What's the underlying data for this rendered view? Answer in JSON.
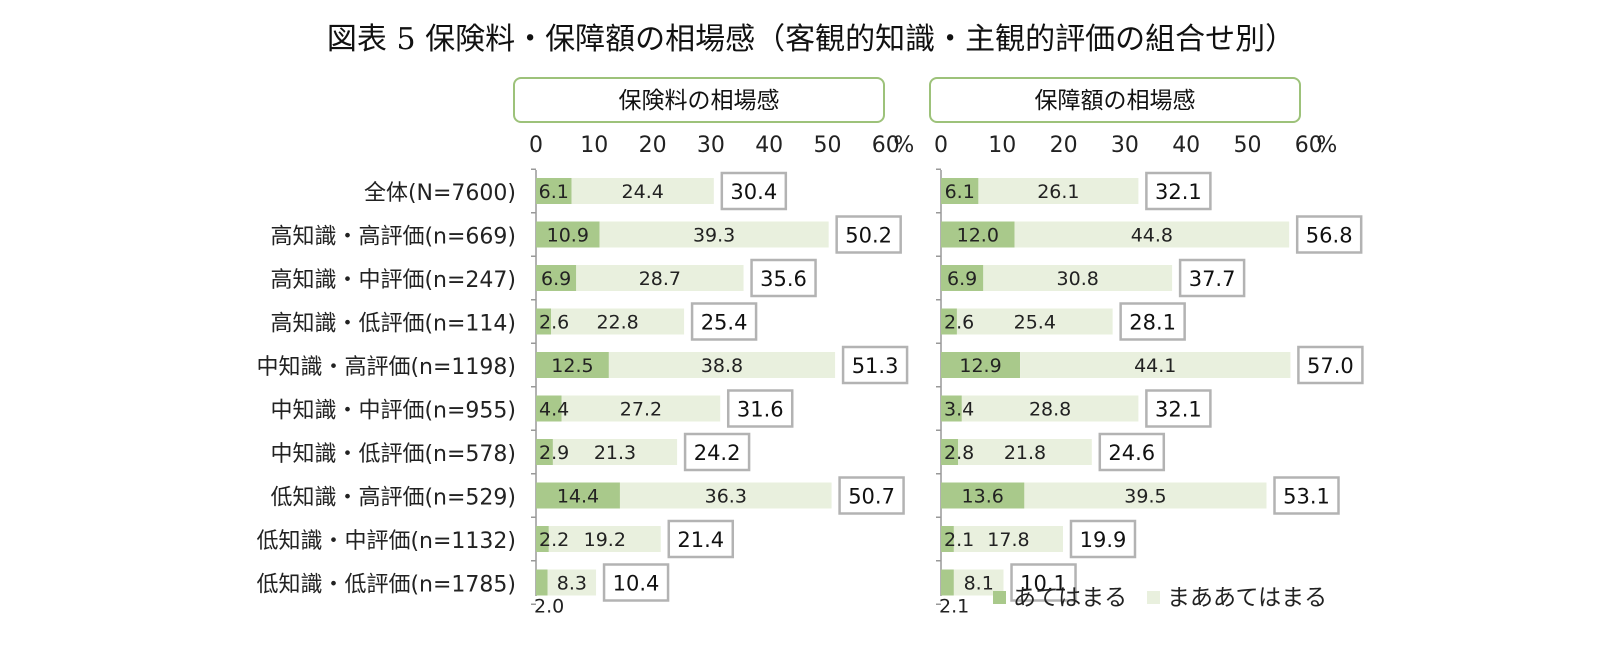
{
  "title": "図表 5 保険料・保障額の相場感（客観的知識・主観的評価の組合せ別）",
  "colors": {
    "dark": "#a9c98b",
    "light": "#e9f0de",
    "panel_border": "#9dc27a",
    "total_border": "#b3b3b3"
  },
  "legend": [
    "あてはまる",
    "まああてはまる"
  ],
  "chart_data": {
    "type": "bar",
    "stacked": true,
    "orientation": "horizontal",
    "unit": "%",
    "xlim": [
      0,
      60
    ],
    "xticks": [
      "0",
      "10",
      "20",
      "30",
      "40",
      "50",
      "60"
    ],
    "categories": [
      "全体(N=7600)",
      "高知識・高評価(n=669)",
      "高知識・中評価(n=247)",
      "高知識・低評価(n=114)",
      "中知識・高評価(n=1198)",
      "中知識・中評価(n=955)",
      "中知識・低評価(n=578)",
      "低知識・高評価(n=529)",
      "低知識・中評価(n=1132)",
      "低知識・低評価(n=1785)"
    ],
    "panels": [
      {
        "title": "保険料の相場感",
        "series": [
          {
            "name": "あてはまる",
            "values": [
              6.1,
              10.9,
              6.9,
              2.6,
              12.5,
              4.4,
              2.9,
              14.4,
              2.2,
              2.0
            ]
          },
          {
            "name": "まああてはまる",
            "values": [
              24.4,
              39.3,
              28.7,
              22.8,
              38.8,
              27.2,
              21.3,
              36.3,
              19.2,
              8.3
            ]
          }
        ],
        "totals": [
          30.4,
          50.2,
          35.6,
          25.4,
          51.3,
          31.6,
          24.2,
          50.7,
          21.4,
          10.4
        ]
      },
      {
        "title": "保障額の相場感",
        "series": [
          {
            "name": "あてはまる",
            "values": [
              6.1,
              12.0,
              6.9,
              2.6,
              12.9,
              3.4,
              2.8,
              13.6,
              2.1,
              2.1
            ]
          },
          {
            "name": "まああてはまる",
            "values": [
              26.1,
              44.8,
              30.8,
              25.4,
              44.1,
              28.8,
              21.8,
              39.5,
              17.8,
              8.1
            ]
          }
        ],
        "totals": [
          32.1,
          56.8,
          37.7,
          28.1,
          57.0,
          32.1,
          24.6,
          53.1,
          19.9,
          10.1
        ]
      }
    ]
  }
}
